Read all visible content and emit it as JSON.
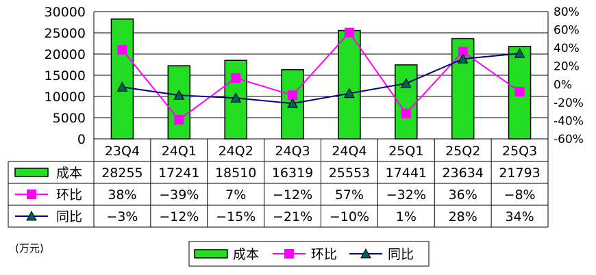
{
  "chart_data": {
    "type": "bar",
    "categories": [
      "23Q4",
      "24Q1",
      "24Q2",
      "24Q3",
      "24Q4",
      "25Q1",
      "25Q2",
      "25Q3"
    ],
    "series": [
      {
        "name": "成本",
        "type": "bar",
        "axis": "left",
        "color": "#22dd22",
        "values": [
          28255,
          17241,
          18510,
          16319,
          25553,
          17441,
          23634,
          21793
        ],
        "table_values": [
          "28255",
          "17241",
          "18510",
          "16319",
          "25553",
          "17441",
          "23634",
          "21793"
        ]
      },
      {
        "name": "环比",
        "type": "line",
        "axis": "right",
        "color": "#ff00ff",
        "marker": "square",
        "values": [
          38,
          -39,
          7,
          -12,
          57,
          -32,
          36,
          -8
        ],
        "table_values": [
          "38%",
          "−39%",
          "7%",
          "−12%",
          "57%",
          "−32%",
          "36%",
          "−8%"
        ]
      },
      {
        "name": "同比",
        "type": "line",
        "axis": "right",
        "color": "#000080",
        "marker": "triangle",
        "values": [
          -3,
          -12,
          -15,
          -21,
          -10,
          1,
          28,
          34
        ],
        "table_values": [
          "−3%",
          "−12%",
          "−15%",
          "−21%",
          "−10%",
          "1%",
          "28%",
          "34%"
        ]
      }
    ],
    "y_left": {
      "min": 0,
      "max": 30000,
      "ticks": [
        "0",
        "5000",
        "10000",
        "15000",
        "20000",
        "25000",
        "30000"
      ]
    },
    "y_right": {
      "min": -60,
      "max": 80,
      "ticks": [
        "-60%",
        "-40%",
        "-20%",
        "0%",
        "20%",
        "40%",
        "60%",
        "80%"
      ]
    },
    "unit_label": "(万元)",
    "legend": [
      "成本",
      "环比",
      "同比"
    ],
    "grid": true
  }
}
